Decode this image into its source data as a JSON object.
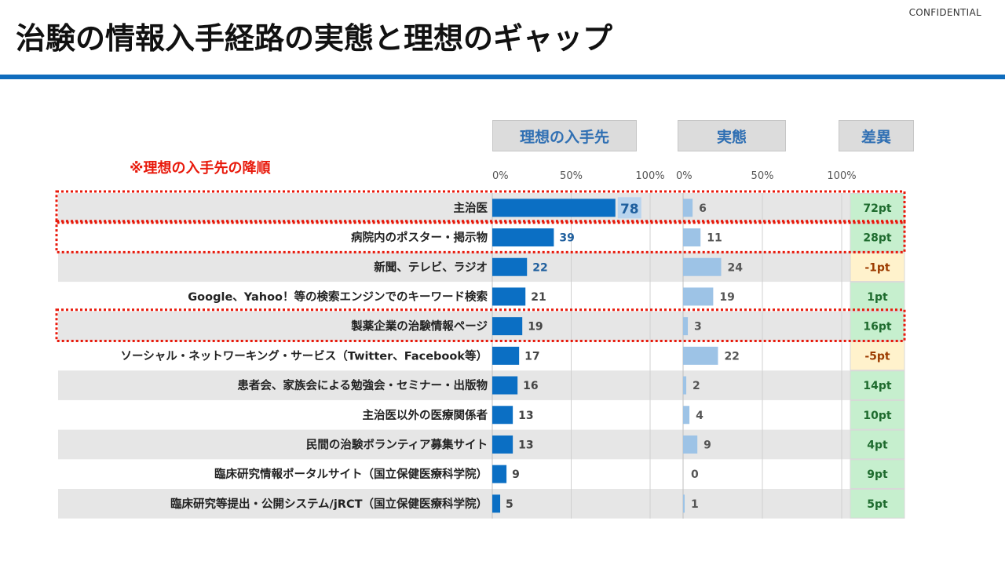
{
  "confidential": "CONFIDENTIAL",
  "title": "治験の情報入手経路の実態と理想のギャップ",
  "headers": {
    "ideal": "理想の入手先",
    "actual": "実態",
    "diff": "差異"
  },
  "note": "※理想の入手先の降順",
  "colors": {
    "ideal_bar": "#0b6fc4",
    "actual_bar": "#9dc3e6",
    "row_shade": "#e6e6e6",
    "diff_pos": "#c6efce",
    "diff_neg": "#fff2cc",
    "diff_pos_text": "#1e6b2e",
    "diff_neg_text": "#9c3b00",
    "highlight": "#e8190b"
  },
  "chart_data": {
    "type": "bar",
    "ideal_ticks": [
      "0%",
      "50%",
      "100%"
    ],
    "actual_ticks": [
      "0%",
      "50%",
      "100%"
    ],
    "xlim": [
      0,
      100
    ],
    "categories": [
      "主治医",
      "病院内のポスター・掲示物",
      "新聞、テレビ、ラジオ",
      "Google、Yahoo！等の検索エンジンでのキーワード検索",
      "製薬企業の治験情報ページ",
      "ソーシャル・ネットワーキング・サービス（Twitter、Facebook等）",
      "患者会、家族会による勉強会・セミナー・出版物",
      "主治医以外の医療関係者",
      "民間の治験ボランティア募集サイト",
      "臨床研究情報ポータルサイト（国立保健医療科学院）",
      "臨床研究等提出・公開システム/jRCT（国立保健医療科学院）"
    ],
    "series": [
      {
        "values": [
          78,
          39,
          22,
          21,
          19,
          17,
          16,
          13,
          13,
          9,
          5
        ]
      },
      {
        "values": [
          6,
          11,
          24,
          19,
          3,
          22,
          2,
          4,
          9,
          0,
          1
        ]
      }
    ],
    "diff_labels": [
      "72pt",
      "28pt",
      "-1pt",
      "1pt",
      "16pt",
      "-5pt",
      "14pt",
      "10pt",
      "4pt",
      "9pt",
      "5pt"
    ],
    "highlighted_groups": [
      [
        0,
        1
      ],
      [
        4
      ]
    ]
  }
}
